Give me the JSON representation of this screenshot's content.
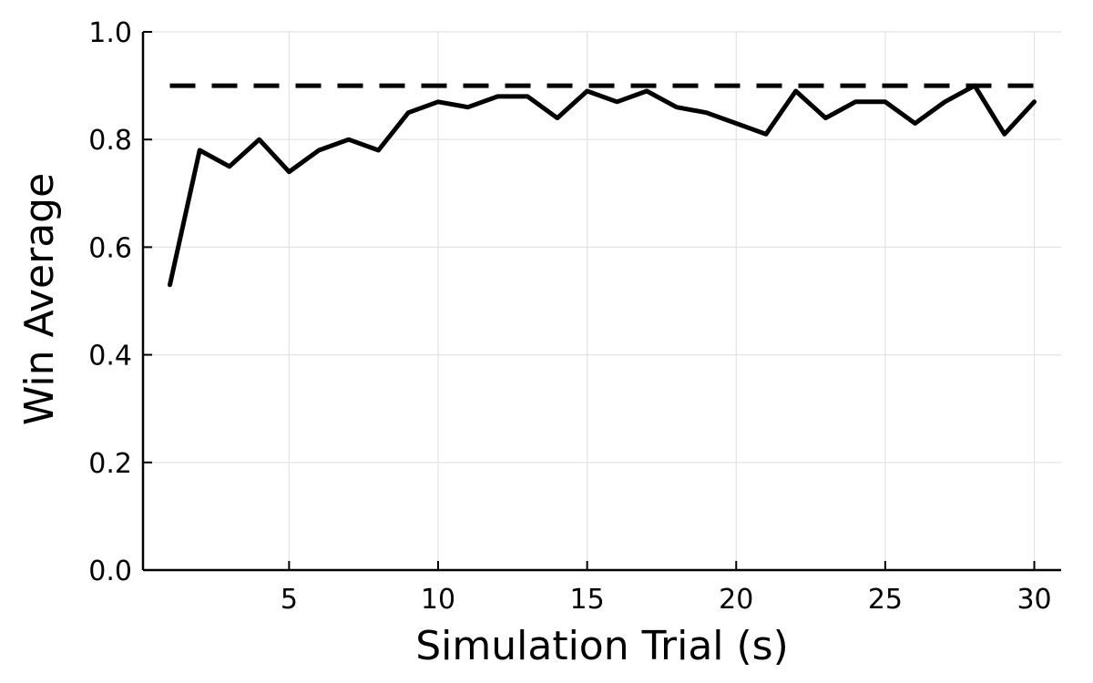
{
  "chart_data": {
    "type": "line",
    "title": "",
    "xlabel": "Simulation Trial (s)",
    "ylabel": "Win Average",
    "xlim": [
      0.1,
      30.9
    ],
    "ylim": [
      0.0,
      1.0
    ],
    "xticks": [
      5,
      10,
      15,
      20,
      25,
      30
    ],
    "xtick_labels": [
      "5",
      "10",
      "15",
      "20",
      "25",
      "30"
    ],
    "yticks": [
      0.0,
      0.2,
      0.4,
      0.6,
      0.8,
      1.0
    ],
    "ytick_labels": [
      "0.0",
      "0.2",
      "0.4",
      "0.6",
      "0.8",
      "1.0"
    ],
    "grid": true,
    "legend": false,
    "series": [
      {
        "style": "solid",
        "color": "#000000",
        "x": [
          1,
          2,
          3,
          4,
          5,
          6,
          7,
          8,
          9,
          10,
          11,
          12,
          13,
          14,
          15,
          16,
          17,
          18,
          19,
          20,
          21,
          22,
          23,
          24,
          25,
          26,
          27,
          28,
          29,
          30
        ],
        "y": [
          0.53,
          0.78,
          0.75,
          0.8,
          0.74,
          0.78,
          0.8,
          0.78,
          0.85,
          0.87,
          0.86,
          0.88,
          0.88,
          0.84,
          0.89,
          0.87,
          0.89,
          0.86,
          0.85,
          0.83,
          0.81,
          0.89,
          0.84,
          0.87,
          0.87,
          0.83,
          0.87,
          0.9,
          0.81,
          0.87
        ]
      },
      {
        "style": "dashed",
        "color": "#000000",
        "x": [
          1,
          30
        ],
        "y": [
          0.9,
          0.9
        ]
      }
    ]
  }
}
